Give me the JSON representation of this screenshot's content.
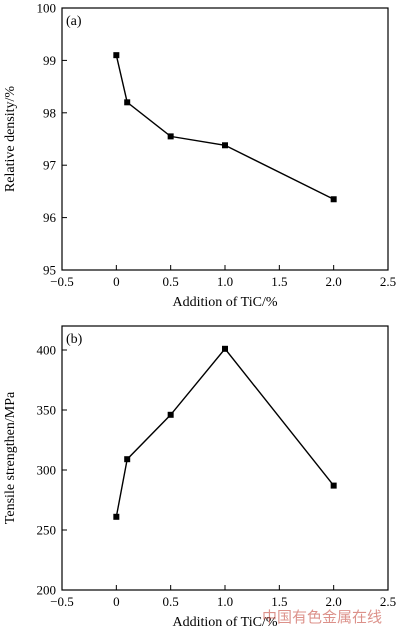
{
  "chart_data": [
    {
      "type": "line",
      "panel_label": "(a)",
      "xlabel": "Addition of TiC/%",
      "ylabel": "Relative density/%",
      "xlim": [
        -0.5,
        2.5
      ],
      "ylim": [
        95,
        100
      ],
      "xticks": [
        -0.5,
        0,
        0.5,
        1.0,
        1.5,
        2.0,
        2.5
      ],
      "xtick_labels": [
        "−0.5",
        "0",
        "0.5",
        "1.0",
        "1.5",
        "2.0",
        "2.5"
      ],
      "yticks": [
        95,
        96,
        97,
        98,
        99,
        100
      ],
      "ytick_labels": [
        "95",
        "96",
        "97",
        "98",
        "99",
        "100"
      ],
      "grid": false,
      "series": [
        {
          "x": [
            0,
            0.1,
            0.5,
            1.0,
            2.0
          ],
          "values": [
            99.1,
            98.2,
            97.55,
            97.38,
            96.35
          ]
        }
      ]
    },
    {
      "type": "line",
      "panel_label": "(b)",
      "xlabel": "Addition of TiC/%",
      "ylabel": "Tensile strengthen/MPa",
      "xlim": [
        -0.5,
        2.5
      ],
      "ylim": [
        200,
        420
      ],
      "xticks": [
        -0.5,
        0,
        0.5,
        1.0,
        1.5,
        2.0,
        2.5
      ],
      "xtick_labels": [
        "−0.5",
        "0",
        "0.5",
        "1.0",
        "1.5",
        "2.0",
        "2.5"
      ],
      "yticks": [
        200,
        250,
        300,
        350,
        400
      ],
      "ytick_labels": [
        "200",
        "250",
        "300",
        "350",
        "400"
      ],
      "grid": false,
      "series": [
        {
          "x": [
            0,
            0.1,
            0.5,
            1.0,
            2.0
          ],
          "values": [
            261,
            309,
            346,
            401,
            287
          ]
        }
      ]
    }
  ],
  "watermark": "中国有色金属在线"
}
